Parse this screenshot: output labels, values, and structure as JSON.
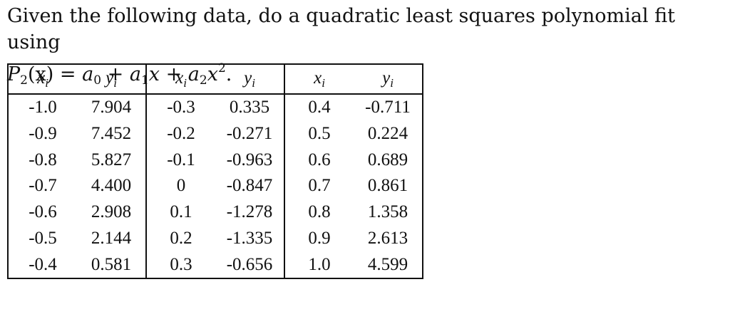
{
  "problem": {
    "line1": "Given the following data, do a quadratic least squares polynomial fit using",
    "formula": {
      "lhs_fn": "P",
      "lhs_sub": "2",
      "lhs_arg": "(x)",
      "eq": " = ",
      "a0": "a",
      "a0_sub": "0",
      "plus1": " + ",
      "a1": "a",
      "a1_sub": "1",
      "x1": "x",
      "plus2": " + ",
      "a2": "a",
      "a2_sub": "2",
      "x2": "x",
      "x2_sup": "2",
      "end": "."
    }
  },
  "table": {
    "headers": [
      "x_i",
      "y_i",
      "x_i",
      "y_i",
      "x_i",
      "y_i"
    ],
    "header_base": {
      "x": "x",
      "y": "y",
      "sub": "i"
    },
    "rows": [
      [
        "-1.0",
        "7.904",
        "-0.3",
        "0.335",
        "0.4",
        "-0.711"
      ],
      [
        "-0.9",
        "7.452",
        "-0.2",
        "-0.271",
        "0.5",
        "0.224"
      ],
      [
        "-0.8",
        "5.827",
        "-0.1",
        "-0.963",
        "0.6",
        "0.689"
      ],
      [
        "-0.7",
        "4.400",
        "0",
        "-0.847",
        "0.7",
        "0.861"
      ],
      [
        "-0.6",
        "2.908",
        "0.1",
        "-1.278",
        "0.8",
        "1.358"
      ],
      [
        "-0.5",
        "2.144",
        "0.2",
        "-1.335",
        "0.9",
        "2.613"
      ],
      [
        "-0.4",
        "0.581",
        "0.3",
        "-0.656",
        "1.0",
        "4.599"
      ]
    ]
  }
}
